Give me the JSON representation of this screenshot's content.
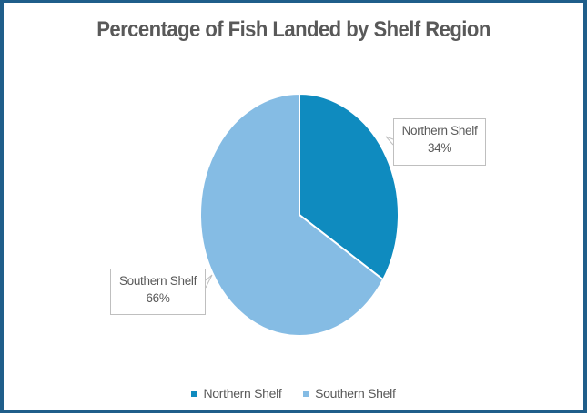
{
  "chart_data": {
    "type": "pie",
    "title": "Percentage of Fish Landed by Shelf Region",
    "categories": [
      "Northern Shelf",
      "Southern Shelf"
    ],
    "values": [
      34,
      66
    ],
    "data_labels": [
      "34%",
      "66%"
    ],
    "colors": [
      "#0f8bbf",
      "#85bce4"
    ],
    "legend_position": "bottom"
  }
}
